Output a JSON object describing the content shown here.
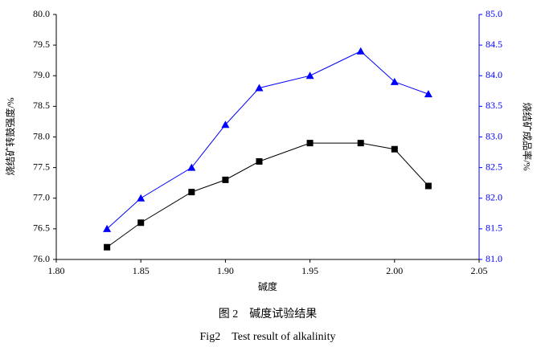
{
  "chart_data": {
    "type": "line",
    "xlabel": "碱度",
    "ylabel": "烧结矿转鼓强度/%",
    "y2label": "烧结矿成品率/%",
    "caption_cn": "图 2　碱度试验结果",
    "caption_en": "Fig2　Test result of alkalinity",
    "x": [
      1.83,
      1.85,
      1.88,
      1.9,
      1.92,
      1.95,
      1.98,
      2.0,
      2.02
    ],
    "series": [
      {
        "color": "#000000",
        "marker": "square",
        "values": [
          76.2,
          76.6,
          77.1,
          77.3,
          77.6,
          77.9,
          77.9,
          77.8,
          77.2
        ]
      },
      {
        "color": "#0000ff",
        "marker": "triangle",
        "axis": "y2",
        "values": [
          81.5,
          82.0,
          82.5,
          83.2,
          83.8,
          84.0,
          84.4,
          83.9,
          83.7
        ]
      }
    ],
    "xlim": [
      1.8,
      2.05
    ],
    "xticks": [
      {
        "value": 1.8,
        "label": "1.80"
      },
      {
        "value": 1.85,
        "label": "1.85"
      },
      {
        "value": 1.9,
        "label": "1.90"
      },
      {
        "value": 1.95,
        "label": "1.95"
      },
      {
        "value": 2.0,
        "label": "2.00"
      },
      {
        "value": 2.05,
        "label": "2.05"
      }
    ],
    "ylim": [
      76.0,
      80.0
    ],
    "yticks": [
      {
        "value": 76,
        "label": "76.0"
      },
      76.5,
      {
        "value": 77,
        "label": "77.0"
      },
      77.5,
      {
        "value": 78,
        "label": "78.0"
      },
      78.5,
      {
        "value": 79,
        "label": "79.0"
      },
      79.5,
      {
        "value": 80,
        "label": "80.0"
      }
    ],
    "y2lim": [
      81.0,
      85.0
    ],
    "y2ticks": [
      {
        "value": 81,
        "label": "81.0"
      },
      81.5,
      {
        "value": 82,
        "label": "82.0"
      },
      82.5,
      {
        "value": 83,
        "label": "83.0"
      },
      83.5,
      {
        "value": 84,
        "label": "84.0"
      },
      84.5,
      {
        "value": 85,
        "label": "85.0"
      }
    ],
    "y2color": "#0000ff"
  }
}
